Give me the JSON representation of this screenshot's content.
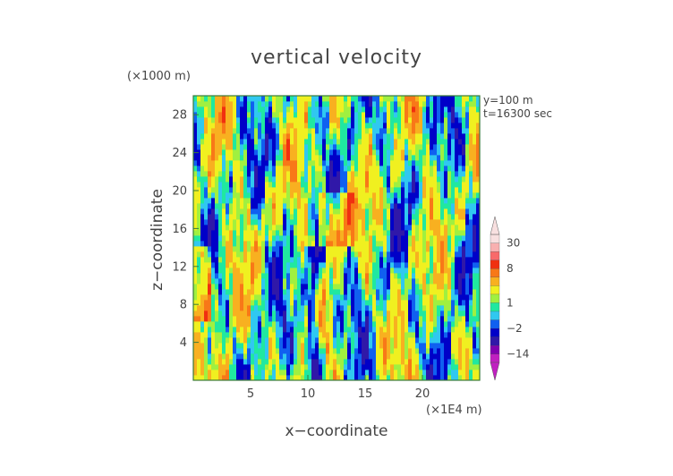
{
  "chart_data": {
    "type": "heatmap",
    "title": "vertical velocity",
    "xlabel": "x−coordinate",
    "ylabel": "z−coordinate",
    "x_unit_label": "(×1E4 m)",
    "y_unit_label": "(×1000 m)",
    "annotations": [
      "y=100 m",
      "t=16300 sec"
    ],
    "xlim": [
      0,
      25
    ],
    "ylim": [
      0,
      30
    ],
    "x_ticks": [
      5,
      10,
      15,
      20
    ],
    "y_ticks": [
      4,
      8,
      12,
      16,
      20,
      24,
      28
    ],
    "colorbar": {
      "tick_labels": [
        "30",
        "8",
        "1",
        "−2",
        "−14"
      ],
      "tick_values": [
        30,
        8,
        1,
        -2,
        -14
      ],
      "levels": [
        {
          "value": -20,
          "color": "#c020c0"
        },
        {
          "value": -14,
          "color": "#8000b0"
        },
        {
          "value": -8,
          "color": "#3018a8"
        },
        {
          "value": -4,
          "color": "#0000c8"
        },
        {
          "value": -2,
          "color": "#1060f0"
        },
        {
          "value": -1,
          "color": "#30c8f0"
        },
        {
          "value": 0,
          "color": "#20e8a0"
        },
        {
          "value": 1,
          "color": "#a0f040"
        },
        {
          "value": 2,
          "color": "#f0f020"
        },
        {
          "value": 4,
          "color": "#f8b020"
        },
        {
          "value": 6,
          "color": "#f87818"
        },
        {
          "value": 8,
          "color": "#f03010"
        },
        {
          "value": 12,
          "color": "#f86a6a"
        },
        {
          "value": 20,
          "color": "#f8b0b0"
        },
        {
          "value": 30,
          "color": "#f8e0e0"
        }
      ]
    }
  }
}
